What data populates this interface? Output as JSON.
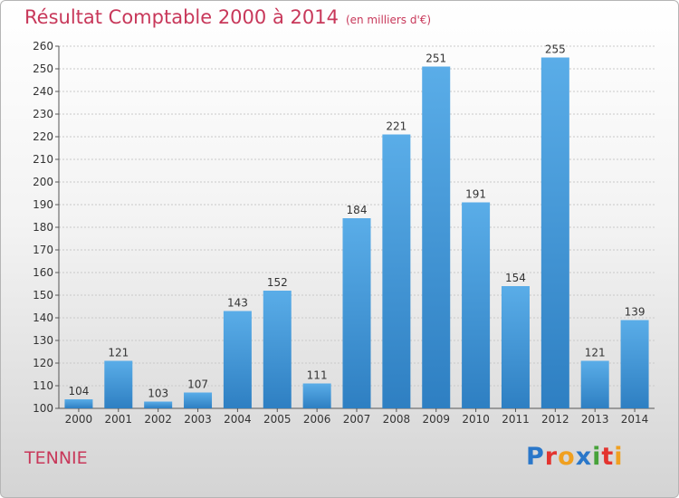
{
  "title": "Résultat Comptable 2000 à 2014",
  "subtitle": "(en milliers d'€)",
  "commune": "TENNIE",
  "logo": {
    "text": "Proxiti",
    "letters": [
      {
        "char": "P",
        "color": "#2a77c9"
      },
      {
        "char": "r",
        "color": "#e3342f"
      },
      {
        "char": "o",
        "color": "#f0a020"
      },
      {
        "char": "x",
        "color": "#2a77c9"
      },
      {
        "char": "i",
        "color": "#47a23a"
      },
      {
        "char": "t",
        "color": "#e3342f"
      },
      {
        "char": "i",
        "color": "#f0a020"
      }
    ]
  },
  "colors": {
    "title": "#c8385a",
    "bar_top": "#5aade8",
    "bar_bottom": "#2e7fc2",
    "grid": "#c9c9c9"
  },
  "chart_data": {
    "type": "bar",
    "title": "Résultat Comptable 2000 à 2014",
    "subtitle": "(en milliers d'€)",
    "categories": [
      "2000",
      "2001",
      "2002",
      "2003",
      "2004",
      "2005",
      "2006",
      "2007",
      "2008",
      "2009",
      "2010",
      "2011",
      "2012",
      "2013",
      "2014"
    ],
    "values": [
      104,
      121,
      103,
      107,
      143,
      152,
      111,
      184,
      221,
      251,
      191,
      154,
      255,
      121,
      139
    ],
    "ylim": [
      100,
      260
    ],
    "yticks": [
      100,
      110,
      120,
      130,
      140,
      150,
      160,
      170,
      180,
      190,
      200,
      210,
      220,
      230,
      240,
      250,
      260
    ],
    "grid": true,
    "xlabel": "",
    "ylabel": ""
  }
}
